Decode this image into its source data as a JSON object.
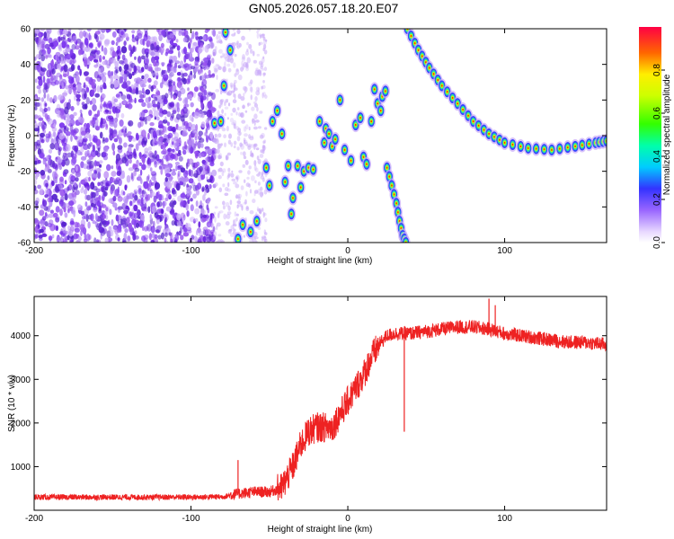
{
  "title": "GN05.2026.057.18.20.E07",
  "chart_data": [
    {
      "type": "heatmap",
      "xlabel": "Height of straight line (km)",
      "ylabel": "Frequency (Hz)",
      "xlim": [
        -200,
        165
      ],
      "ylim": [
        -60,
        60
      ],
      "xticks": [
        -200,
        -100,
        0,
        100
      ],
      "yticks": [
        -60,
        -40,
        -20,
        0,
        20,
        40,
        60
      ],
      "colorbar": {
        "label": "Normalized spectral amplitude",
        "range": [
          0,
          1
        ],
        "ticks": [
          "0.0",
          "0.2",
          "0.4",
          "0.6",
          "0.8"
        ],
        "tick_values": [
          0,
          0.2,
          0.4,
          0.6,
          0.8
        ]
      },
      "noise_region_km": [
        -200,
        -85
      ],
      "track_curve": [
        {
          "x": 38,
          "y": 60
        },
        {
          "x": 45,
          "y": 48
        },
        {
          "x": 52,
          "y": 38
        },
        {
          "x": 60,
          "y": 28
        },
        {
          "x": 70,
          "y": 18
        },
        {
          "x": 80,
          "y": 8
        },
        {
          "x": 90,
          "y": 1
        },
        {
          "x": 100,
          "y": -4
        },
        {
          "x": 115,
          "y": -7
        },
        {
          "x": 130,
          "y": -8
        },
        {
          "x": 145,
          "y": -6
        },
        {
          "x": 158,
          "y": -4
        },
        {
          "x": 165,
          "y": -3
        }
      ],
      "track_descending": [
        {
          "x": 25,
          "y": -18
        },
        {
          "x": 28,
          "y": -28
        },
        {
          "x": 31,
          "y": -38
        },
        {
          "x": 33,
          "y": -48
        },
        {
          "x": 35,
          "y": -56
        },
        {
          "x": 37,
          "y": -60
        }
      ],
      "blobs": [
        {
          "x": -85,
          "y": 7
        },
        {
          "x": -81,
          "y": 8
        },
        {
          "x": -78,
          "y": 58
        },
        {
          "x": -75,
          "y": 48
        },
        {
          "x": -79,
          "y": 28
        },
        {
          "x": -70,
          "y": -58
        },
        {
          "x": -67,
          "y": -50
        },
        {
          "x": -62,
          "y": -54
        },
        {
          "x": -58,
          "y": -48
        },
        {
          "x": -52,
          "y": -18
        },
        {
          "x": -50,
          "y": -28
        },
        {
          "x": -48,
          "y": 8
        },
        {
          "x": -45,
          "y": 14
        },
        {
          "x": -42,
          "y": 1
        },
        {
          "x": -40,
          "y": -26
        },
        {
          "x": -38,
          "y": -17
        },
        {
          "x": -36,
          "y": -44
        },
        {
          "x": -35,
          "y": -35
        },
        {
          "x": -32,
          "y": -17
        },
        {
          "x": -30,
          "y": -29
        },
        {
          "x": -28,
          "y": -20
        },
        {
          "x": -25,
          "y": -18
        },
        {
          "x": -22,
          "y": -19
        },
        {
          "x": -18,
          "y": 8
        },
        {
          "x": -15,
          "y": -4
        },
        {
          "x": -14,
          "y": 4
        },
        {
          "x": -12,
          "y": 1
        },
        {
          "x": -10,
          "y": -6
        },
        {
          "x": -8,
          "y": -2
        },
        {
          "x": -5,
          "y": 20
        },
        {
          "x": -2,
          "y": -8
        },
        {
          "x": 2,
          "y": -14
        },
        {
          "x": 5,
          "y": 6
        },
        {
          "x": 8,
          "y": 10
        },
        {
          "x": 10,
          "y": -12
        },
        {
          "x": 12,
          "y": -16
        },
        {
          "x": 15,
          "y": 8
        },
        {
          "x": 17,
          "y": 26
        },
        {
          "x": 19,
          "y": 18
        },
        {
          "x": 21,
          "y": 14
        },
        {
          "x": 22,
          "y": 22
        },
        {
          "x": 24,
          "y": 25
        }
      ]
    },
    {
      "type": "line",
      "xlabel": "Height of straight line (km)",
      "ylabel": "SNR (10 * v/v)",
      "xlim": [
        -200,
        165
      ],
      "ylim": [
        0,
        4900
      ],
      "xticks": [
        -200,
        -100,
        0,
        100
      ],
      "yticks": [
        1000,
        2000,
        3000,
        4000
      ],
      "series": [
        {
          "name": "SNR",
          "color": "#ee2222",
          "x": [
            -200,
            -150,
            -100,
            -80,
            -70,
            -60,
            -50,
            -42,
            -35,
            -30,
            -25,
            -20,
            -15,
            -10,
            -5,
            0,
            5,
            10,
            15,
            20,
            25,
            30,
            40,
            50,
            60,
            70,
            80,
            90,
            100,
            110,
            120,
            130,
            140,
            150,
            165
          ],
          "y": [
            300,
            300,
            300,
            310,
            380,
            420,
            420,
            520,
            1000,
            1500,
            1800,
            1900,
            1900,
            1900,
            2200,
            2500,
            2800,
            3100,
            3500,
            3800,
            4000,
            4050,
            4050,
            4100,
            4150,
            4200,
            4200,
            4150,
            4050,
            4000,
            3950,
            3900,
            3850,
            3850,
            3800
          ],
          "spikes": [
            {
              "x": -70,
              "y": 1150
            },
            {
              "x": 36,
              "y": 1800
            },
            {
              "x": 90,
              "y": 4850
            },
            {
              "x": 94,
              "y": 4700
            }
          ]
        }
      ]
    }
  ]
}
